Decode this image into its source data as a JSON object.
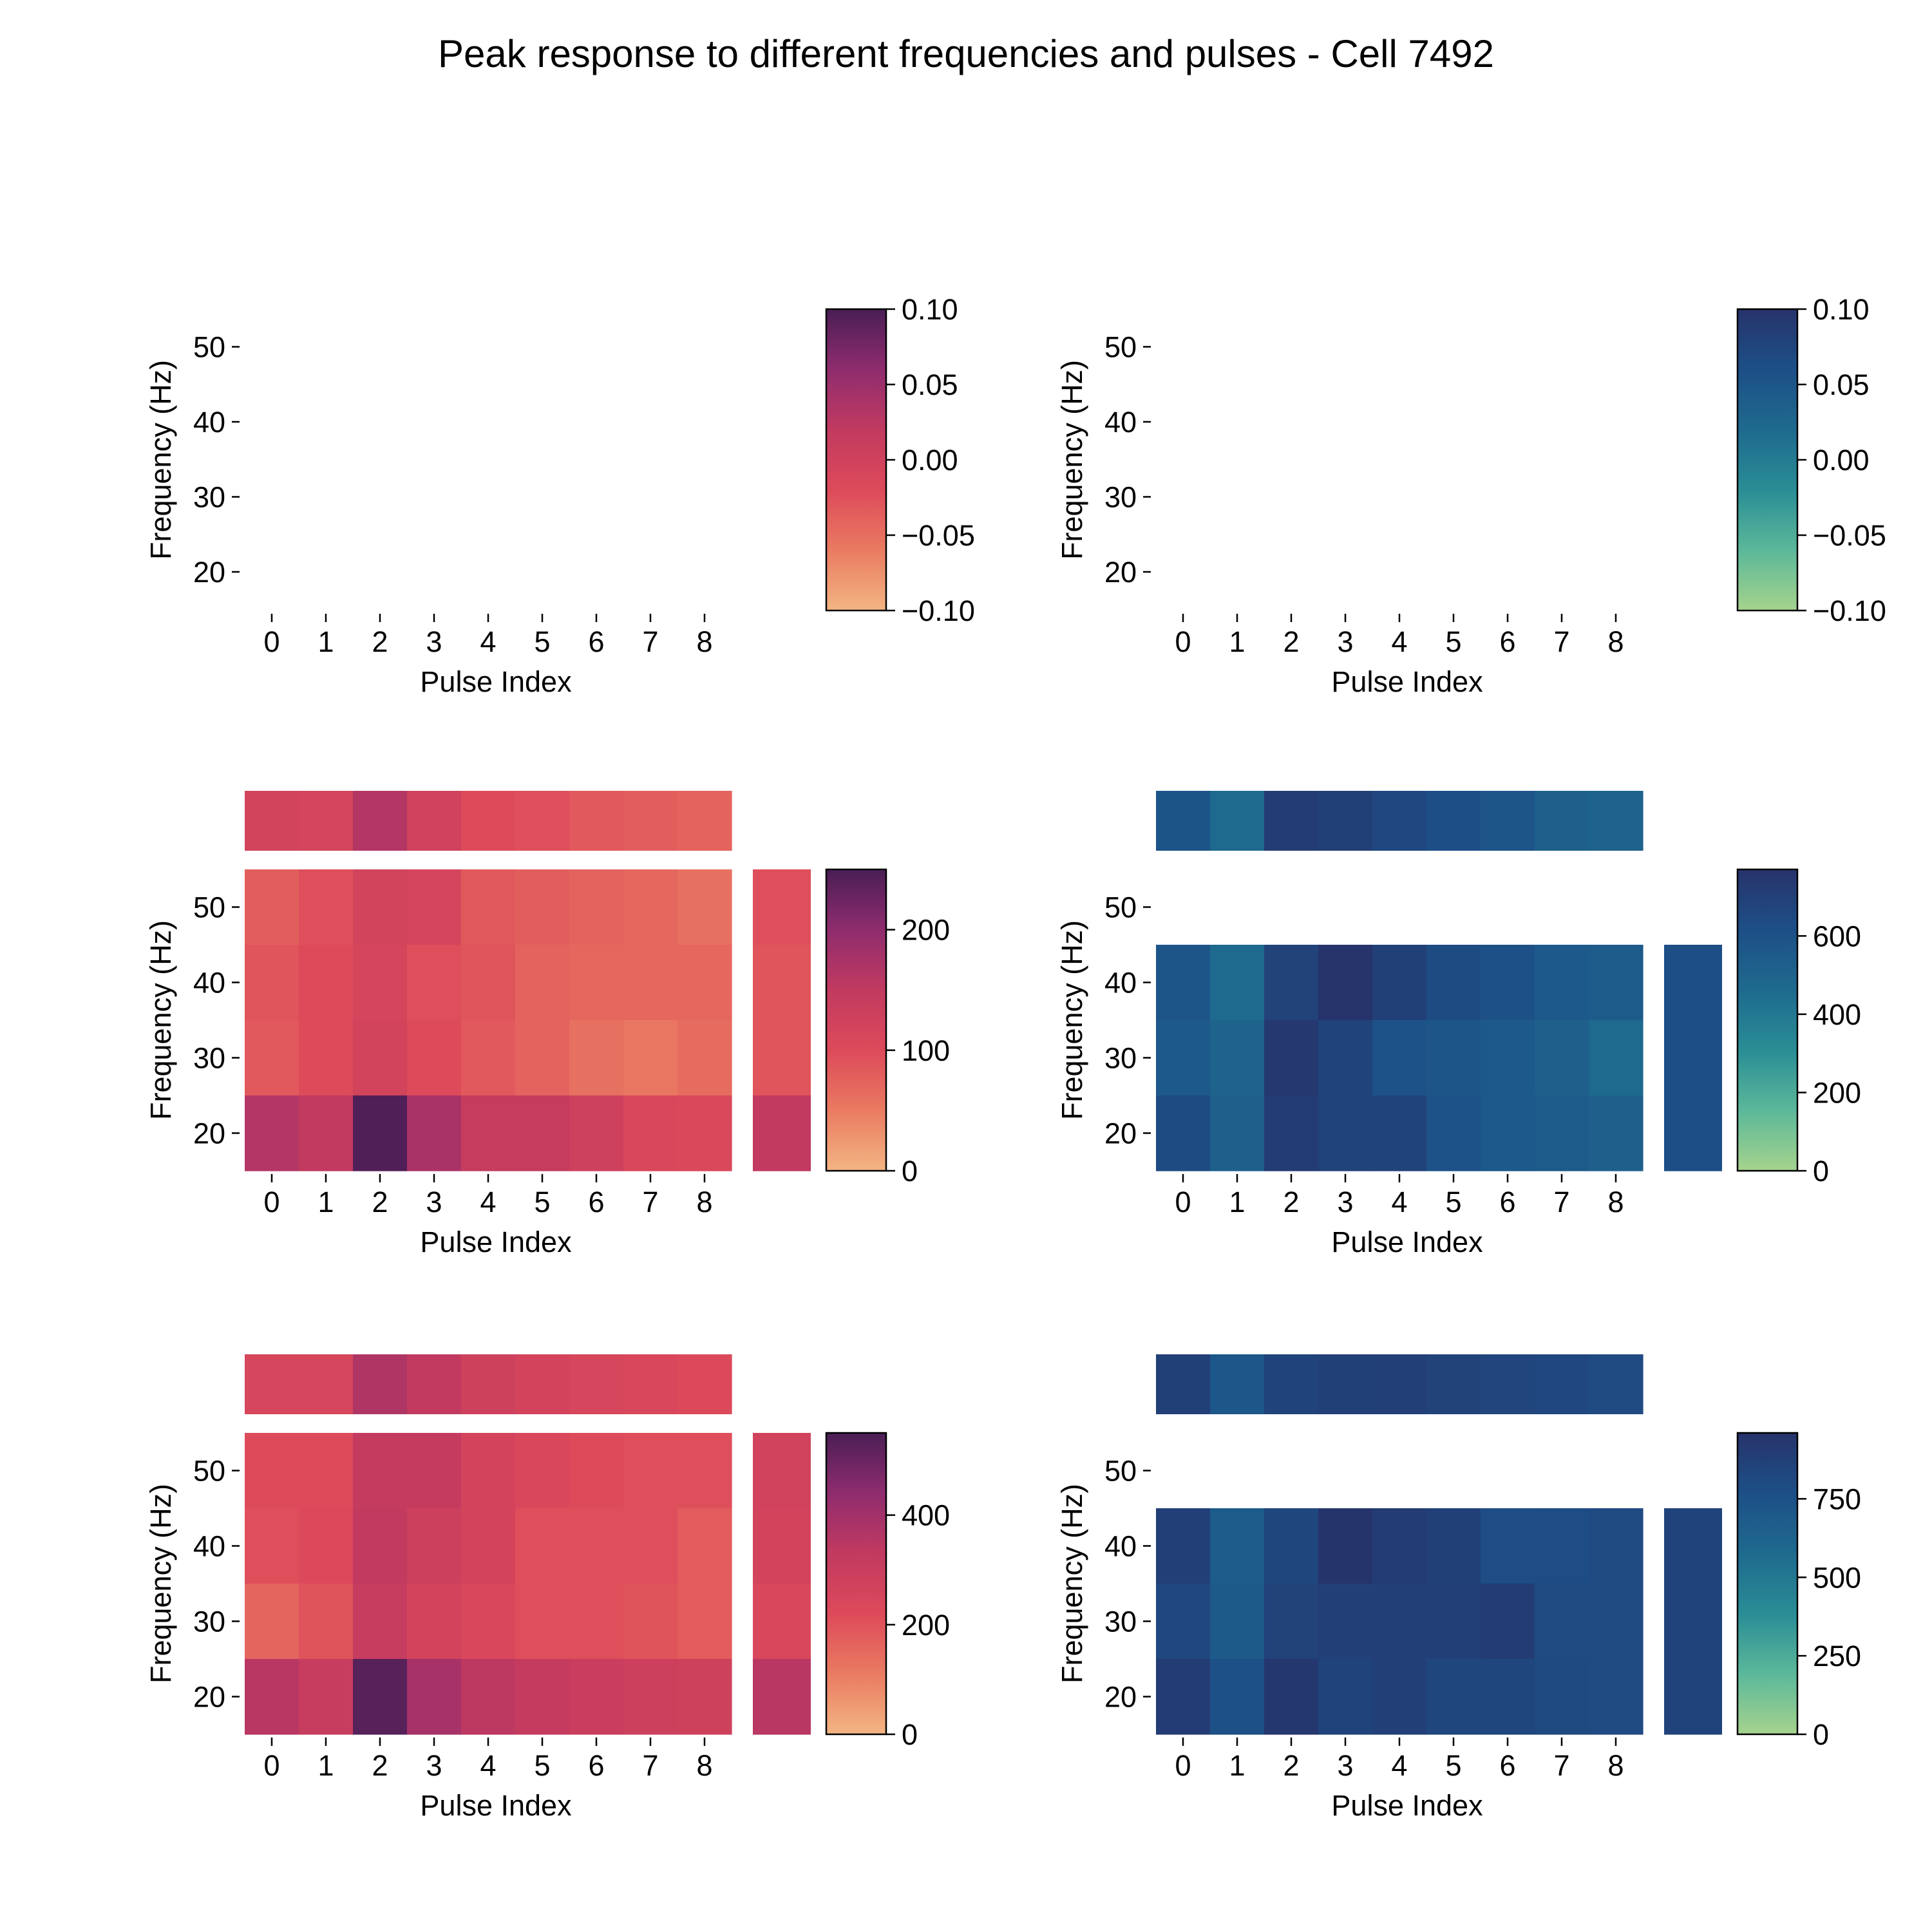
{
  "title": "Peak response to different frequencies and pulses - Cell 7492",
  "colormaps": {
    "magma_like": [
      "#f3b583",
      "#ea7b61",
      "#dd4a5a",
      "#c23a60",
      "#8f2c6e",
      "#4a1e55"
    ],
    "teal_blue": [
      "#a6d38d",
      "#5bb89a",
      "#2a8d95",
      "#1e6a8e",
      "#1d4f87",
      "#27336b"
    ]
  },
  "chart_data": [
    {
      "id": "r1-left",
      "type": "heatmap",
      "colormap": "magma_like",
      "xlabel": "Pulse Index",
      "ylabel": "Frequency (Hz)",
      "x_ticks": [
        "0",
        "1",
        "2",
        "3",
        "4",
        "5",
        "6",
        "7",
        "8"
      ],
      "y_ticks": [
        "20",
        "30",
        "40",
        "50"
      ],
      "rows": [],
      "top_strip": null,
      "side_strip": null,
      "vmin": -0.1,
      "vmax": 0.1,
      "colorbar_ticks": [
        "−0.10",
        "−0.05",
        "0.00",
        "0.05",
        "0.10"
      ],
      "colorbar_values": [
        -0.1,
        -0.05,
        0.0,
        0.05,
        0.1
      ]
    },
    {
      "id": "r1-right",
      "type": "heatmap",
      "colormap": "teal_blue",
      "xlabel": "Pulse Index",
      "ylabel": "Frequency (Hz)",
      "x_ticks": [
        "0",
        "1",
        "2",
        "3",
        "4",
        "5",
        "6",
        "7",
        "8"
      ],
      "y_ticks": [
        "20",
        "30",
        "40",
        "50"
      ],
      "rows": [],
      "top_strip": null,
      "side_strip": null,
      "vmin": -0.1,
      "vmax": 0.1,
      "colorbar_ticks": [
        "−0.10",
        "−0.05",
        "0.00",
        "0.05",
        "0.10"
      ],
      "colorbar_values": [
        -0.1,
        -0.05,
        0.0,
        0.05,
        0.1
      ]
    },
    {
      "id": "r2-left",
      "type": "heatmap",
      "colormap": "magma_like",
      "xlabel": "Pulse Index",
      "ylabel": "Frequency (Hz)",
      "x_ticks": [
        "0",
        "1",
        "2",
        "3",
        "4",
        "5",
        "6",
        "7",
        "8"
      ],
      "y_ticks": [
        "20",
        "30",
        "40",
        "50"
      ],
      "rows": [
        {
          "freq": 50,
          "values": [
            80,
            95,
            120,
            115,
            85,
            80,
            75,
            70,
            60
          ]
        },
        {
          "freq": 40,
          "values": [
            90,
            100,
            115,
            95,
            90,
            75,
            70,
            70,
            70
          ]
        },
        {
          "freq": 30,
          "values": [
            85,
            100,
            120,
            100,
            85,
            75,
            60,
            55,
            65
          ]
        },
        {
          "freq": 20,
          "values": [
            165,
            150,
            245,
            175,
            145,
            145,
            130,
            110,
            105
          ]
        }
      ],
      "top_strip": [
        120,
        115,
        165,
        125,
        100,
        95,
        85,
        80,
        75
      ],
      "side_strip": [
        {
          "freq": 50,
          "value": 95
        },
        {
          "freq": 40,
          "value": 90
        },
        {
          "freq": 30,
          "value": 90
        },
        {
          "freq": 20,
          "value": 150
        }
      ],
      "vmin": 0,
      "vmax": 250,
      "colorbar_ticks": [
        "0",
        "100",
        "200"
      ],
      "colorbar_values": [
        0,
        100,
        200
      ]
    },
    {
      "id": "r2-right",
      "type": "heatmap",
      "colormap": "teal_blue",
      "xlabel": "Pulse Index",
      "ylabel": "Frequency (Hz)",
      "x_ticks": [
        "0",
        "1",
        "2",
        "3",
        "4",
        "5",
        "6",
        "7",
        "8"
      ],
      "y_ticks": [
        "20",
        "30",
        "40",
        "50"
      ],
      "rows": [
        {
          "freq": 50,
          "values": [
            null,
            null,
            null,
            null,
            null,
            null,
            null,
            null,
            null
          ]
        },
        {
          "freq": 40,
          "values": [
            580,
            470,
            690,
            770,
            700,
            640,
            610,
            560,
            550
          ]
        },
        {
          "freq": 30,
          "values": [
            560,
            500,
            740,
            680,
            600,
            580,
            560,
            520,
            470
          ]
        },
        {
          "freq": 20,
          "values": [
            640,
            520,
            720,
            680,
            680,
            600,
            560,
            540,
            520
          ]
        }
      ],
      "top_strip": [
        590,
        470,
        720,
        700,
        660,
        620,
        580,
        520,
        500
      ],
      "side_strip": [
        {
          "freq": 50,
          "value": null
        },
        {
          "freq": 40,
          "value": 620
        },
        {
          "freq": 30,
          "value": 620
        },
        {
          "freq": 20,
          "value": 620
        }
      ],
      "vmin": 0,
      "vmax": 770,
      "colorbar_ticks": [
        "0",
        "200",
        "400",
        "600"
      ],
      "colorbar_values": [
        0,
        200,
        400,
        600
      ]
    },
    {
      "id": "r3-left",
      "type": "heatmap",
      "colormap": "magma_like",
      "xlabel": "Pulse Index",
      "ylabel": "Frequency (Hz)",
      "x_ticks": [
        "0",
        "1",
        "2",
        "3",
        "4",
        "5",
        "6",
        "7",
        "8"
      ],
      "y_ticks": [
        "20",
        "30",
        "40",
        "50"
      ],
      "rows": [
        {
          "freq": 50,
          "values": [
            220,
            220,
            320,
            320,
            260,
            240,
            220,
            210,
            210
          ]
        },
        {
          "freq": 40,
          "values": [
            210,
            230,
            330,
            290,
            260,
            210,
            210,
            210,
            180
          ]
        },
        {
          "freq": 30,
          "values": [
            160,
            200,
            310,
            260,
            240,
            210,
            210,
            200,
            180
          ]
        },
        {
          "freq": 20,
          "values": [
            350,
            310,
            530,
            390,
            340,
            320,
            300,
            290,
            280
          ]
        }
      ],
      "top_strip": [
        250,
        250,
        370,
        330,
        280,
        260,
        250,
        240,
        230
      ],
      "side_strip": [
        {
          "freq": 50,
          "value": 270
        },
        {
          "freq": 40,
          "value": 260
        },
        {
          "freq": 30,
          "value": 240
        },
        {
          "freq": 20,
          "value": 350
        }
      ],
      "vmin": 0,
      "vmax": 550,
      "colorbar_ticks": [
        "0",
        "200",
        "400"
      ],
      "colorbar_values": [
        0,
        200,
        400
      ]
    },
    {
      "id": "r3-right",
      "type": "heatmap",
      "colormap": "teal_blue",
      "xlabel": "Pulse Index",
      "ylabel": "Frequency (Hz)",
      "x_ticks": [
        "0",
        "1",
        "2",
        "3",
        "4",
        "5",
        "6",
        "7",
        "8"
      ],
      "y_ticks": [
        "20",
        "30",
        "40",
        "50"
      ],
      "rows": [
        {
          "freq": 50,
          "values": [
            null,
            null,
            null,
            null,
            null,
            null,
            null,
            null,
            null
          ]
        },
        {
          "freq": 40,
          "values": [
            880,
            680,
            830,
            950,
            900,
            870,
            780,
            790,
            800
          ]
        },
        {
          "freq": 30,
          "values": [
            820,
            690,
            860,
            880,
            880,
            880,
            900,
            800,
            800
          ]
        },
        {
          "freq": 20,
          "values": [
            900,
            760,
            930,
            850,
            880,
            830,
            830,
            810,
            800
          ]
        }
      ],
      "top_strip": [
        870,
        720,
        850,
        870,
        880,
        860,
        840,
        820,
        800
      ],
      "side_strip": [
        {
          "freq": 50,
          "value": null
        },
        {
          "freq": 40,
          "value": 850
        },
        {
          "freq": 30,
          "value": 850
        },
        {
          "freq": 20,
          "value": 850
        }
      ],
      "vmin": 0,
      "vmax": 960,
      "colorbar_ticks": [
        "0",
        "250",
        "500",
        "750"
      ],
      "colorbar_values": [
        0,
        250,
        500,
        750
      ]
    }
  ]
}
